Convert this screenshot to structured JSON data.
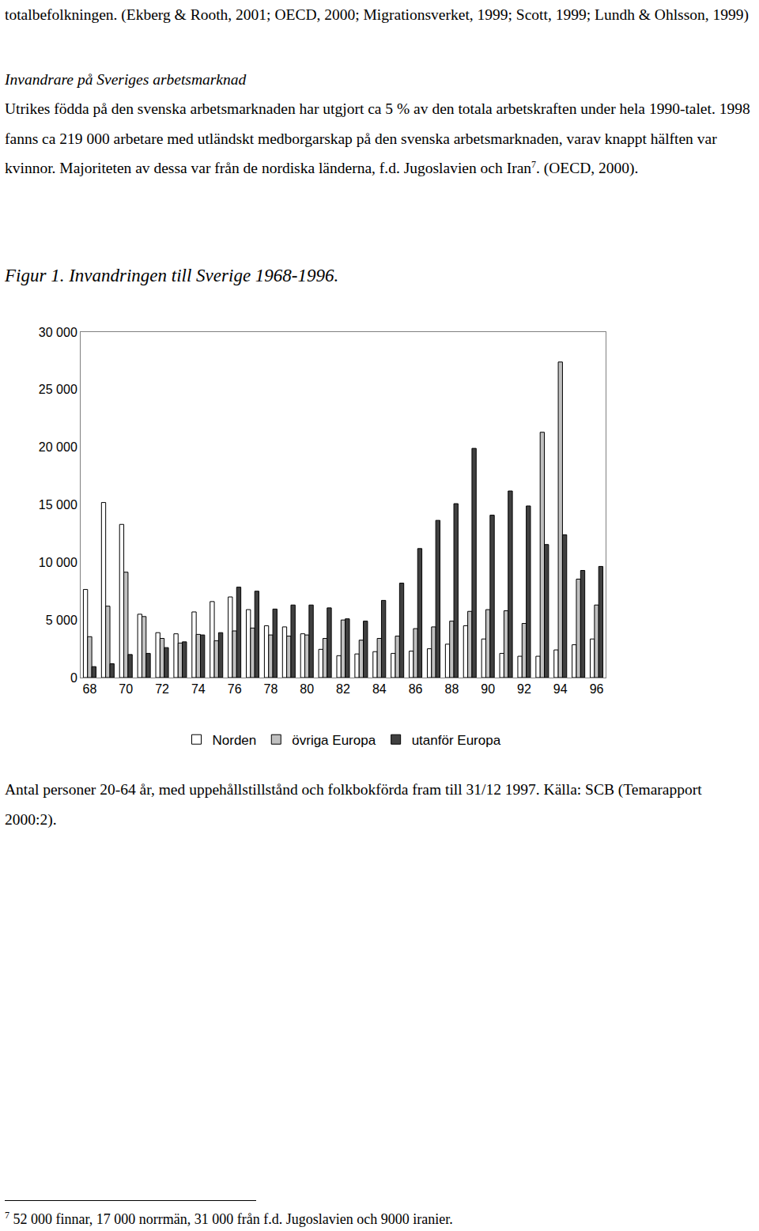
{
  "document": {
    "intro": "totalbefolkningen. (Ekberg & Rooth, 2001; OECD, 2000; Migrationsverket, 1999; Scott, 1999; Lundh & Ohlsson, 1999)",
    "heading": "Invandrare på Sveriges arbetsmarknad",
    "paragraph": {
      "text": "Utrikes födda på den svenska arbetsmarknaden har utgjort ca 5 % av den totala arbetskraften under hela 1990-talet. 1998 fanns ca 219 000 arbetare med utländskt medborgarskap på den svenska arbetsmarknaden, varav knappt hälften var kvinnor. Majoriteten av dessa var från de nordiska länderna, f.d. Jugoslavien och Iran",
      "footnote_mark": "7",
      "after": ". (OECD, 2000)."
    },
    "caption": "Antal personer 20-64 år, med uppehållstillstånd och folkbokförda fram till 31/12 1997. Källa: SCB (Temarapport 2000:2).",
    "footnote": {
      "mark": "7",
      "text": "52 000 finnar, 17 000 norrmän, 31 000 från f.d. Jugoslavien och 9000 iranier."
    }
  },
  "chart_data": {
    "type": "bar",
    "title": "Figur 1. Invandringen till Sverige 1968-1996.",
    "categories": [
      "68",
      null,
      "70",
      null,
      "72",
      null,
      "74",
      null,
      "76",
      null,
      "78",
      null,
      "80",
      null,
      "82",
      null,
      "84",
      null,
      "86",
      null,
      "88",
      null,
      "90",
      null,
      "92",
      null,
      "94",
      null,
      "96"
    ],
    "series": [
      {
        "name": "Norden",
        "color": "#ffffff",
        "values": [
          7650,
          15200,
          13300,
          5500,
          3900,
          3800,
          5700,
          6600,
          7000,
          5900,
          4500,
          4400,
          3800,
          2450,
          1900,
          2050,
          2250,
          2100,
          2300,
          2500,
          2900,
          4500,
          3350,
          2100,
          1850,
          1850,
          2400,
          2850,
          3350
        ]
      },
      {
        "name": "övriga Europa",
        "color": "#c0c0c0",
        "values": [
          3550,
          6200,
          9150,
          5300,
          3400,
          3000,
          3750,
          3200,
          4050,
          4300,
          3700,
          3600,
          3700,
          3400,
          5000,
          3250,
          3400,
          3600,
          4250,
          4400,
          4900,
          5750,
          5900,
          5800,
          4700,
          21300,
          27400,
          8550,
          6300
        ]
      },
      {
        "name": "utanför Europa",
        "color": "#404040",
        "values": [
          950,
          1200,
          2000,
          2100,
          2600,
          3100,
          3700,
          3900,
          7850,
          7500,
          5950,
          6300,
          6300,
          6050,
          5100,
          4900,
          6700,
          8200,
          11200,
          13650,
          15100,
          19900,
          14100,
          16200,
          14900,
          11550,
          12400,
          9300,
          9650
        ]
      }
    ],
    "ylim": [
      0,
      30000
    ],
    "yticks": [
      0,
      {
        "value": 5000,
        "label": "5 000"
      },
      {
        "value": 10000,
        "label": "10 000"
      },
      {
        "value": 15000,
        "label": "15 000"
      },
      {
        "value": 20000,
        "label": "20 000"
      },
      {
        "value": 25000,
        "label": "25 000"
      },
      {
        "value": 30000,
        "label": "30 000"
      }
    ],
    "grid": false,
    "legend": "bottom"
  }
}
